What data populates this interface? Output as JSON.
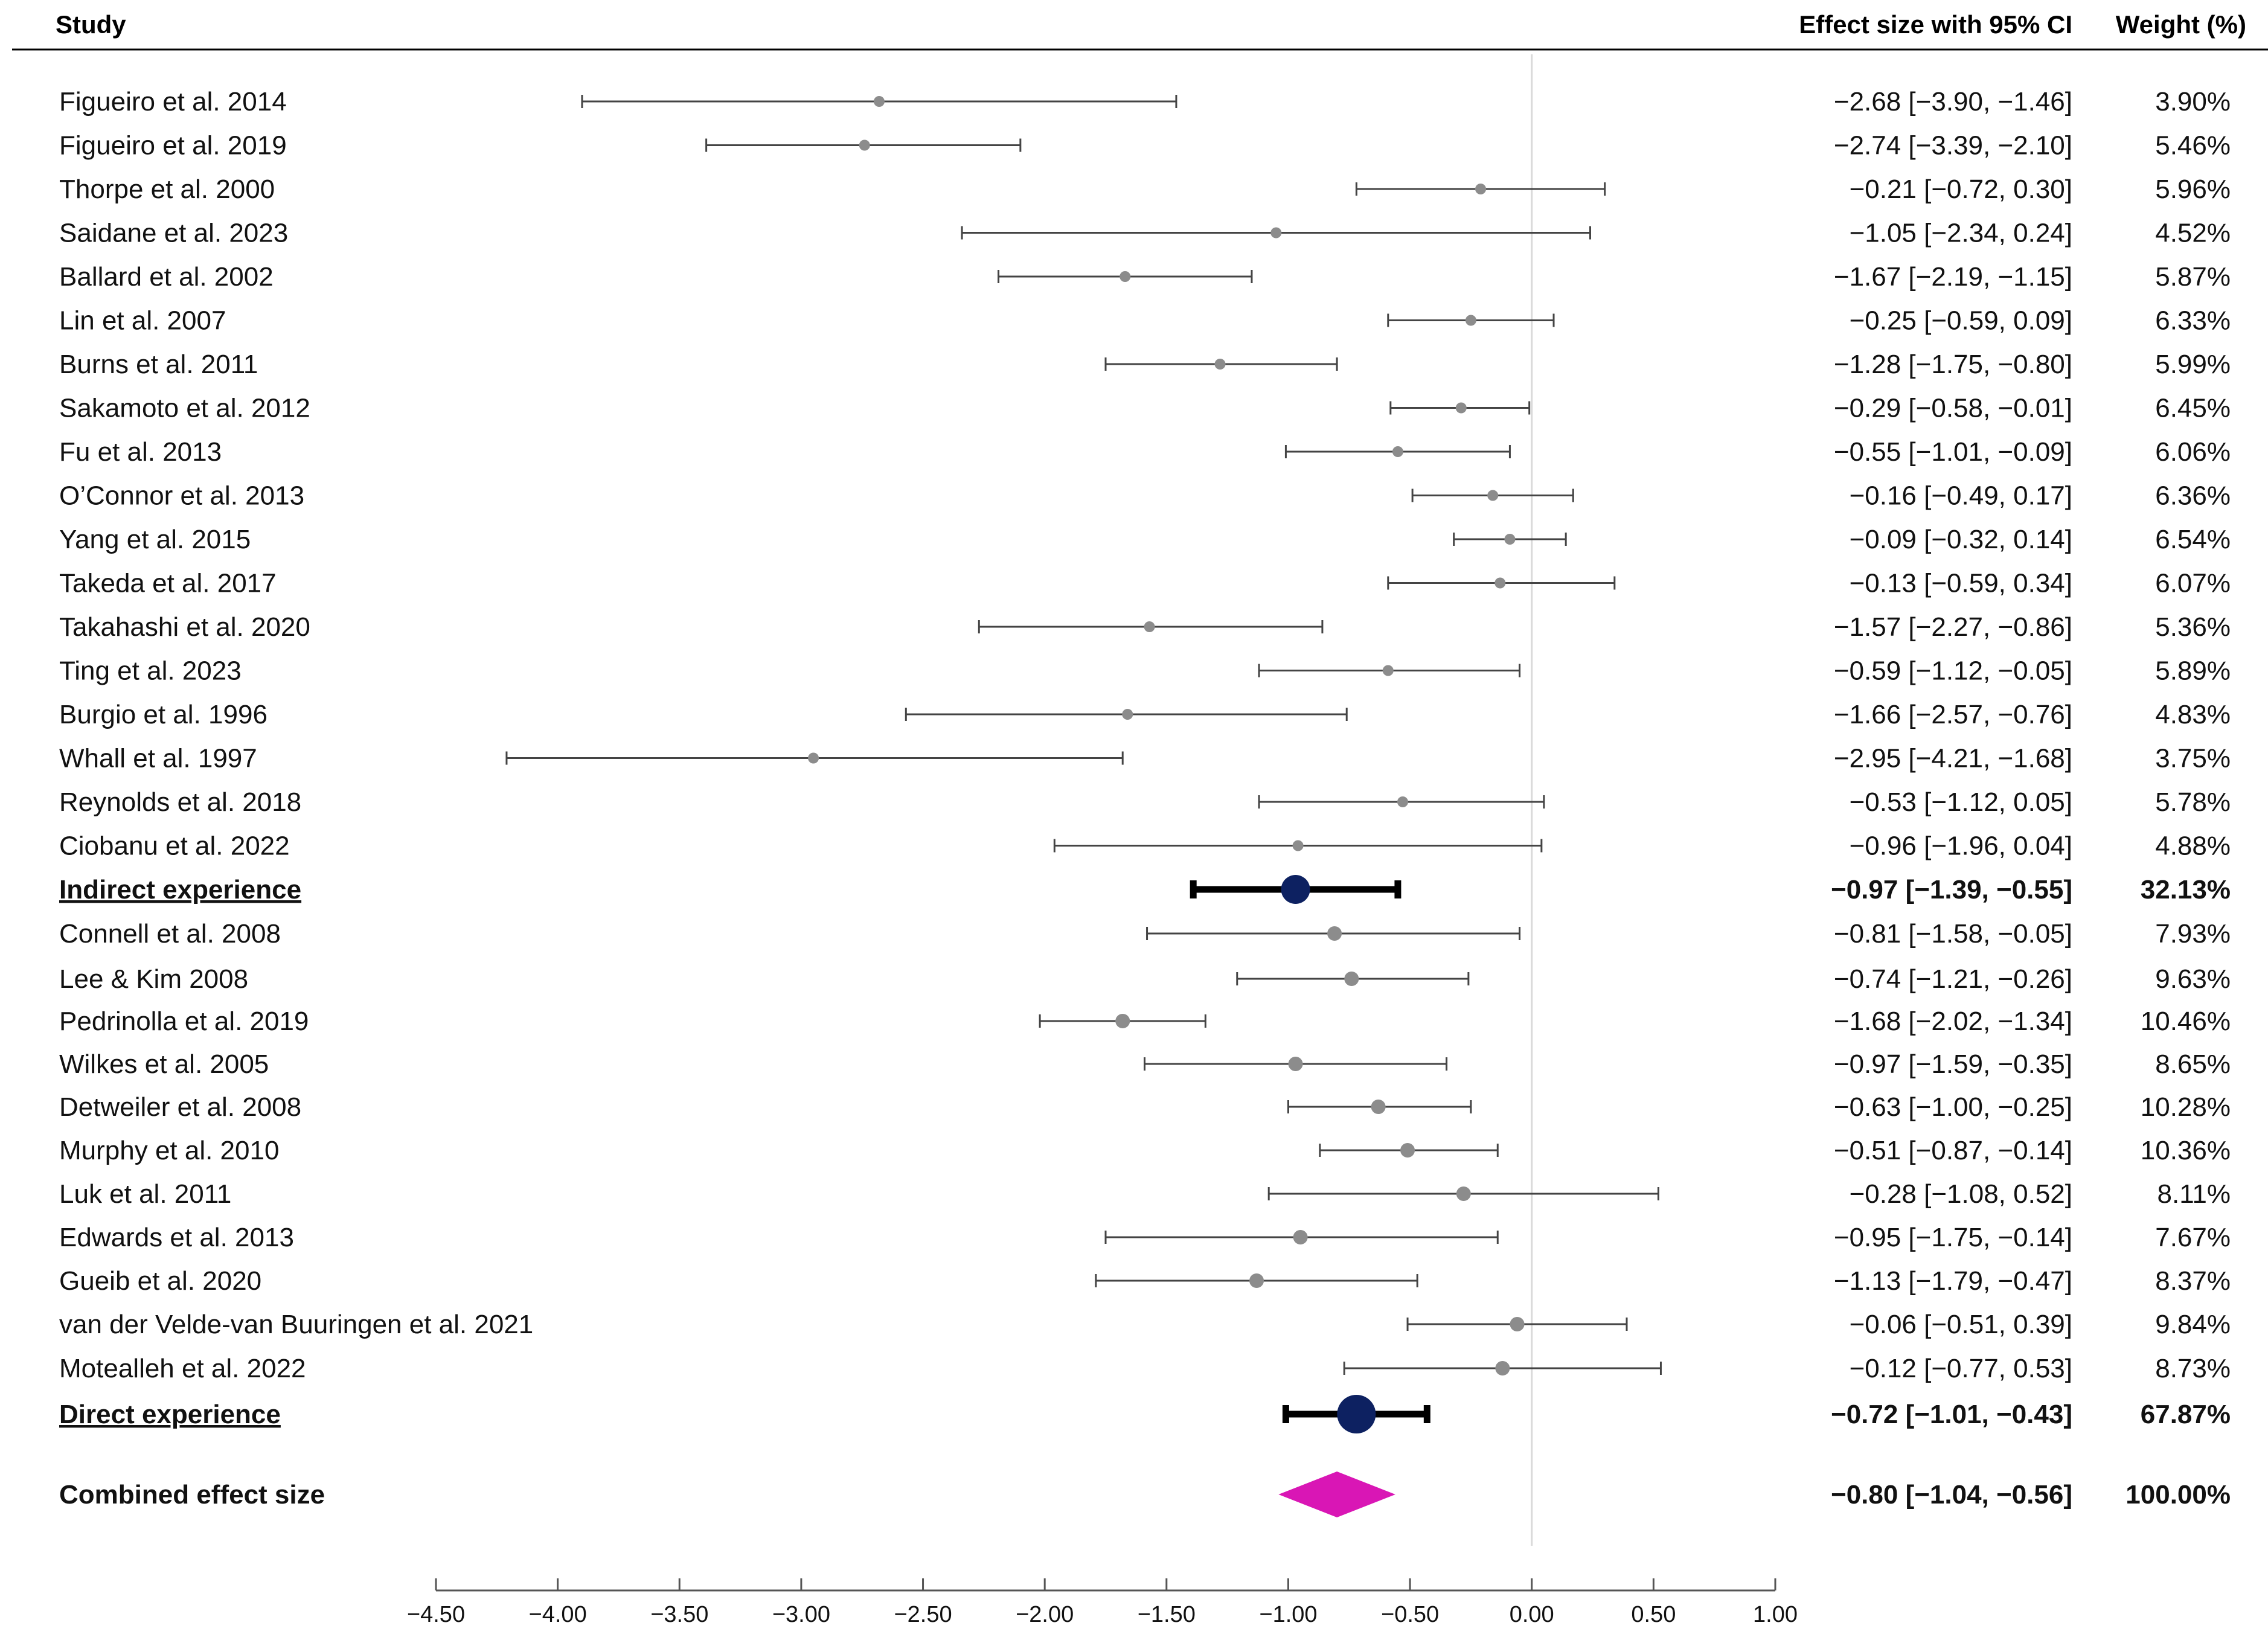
{
  "chart_data": {
    "type": "forest",
    "columns": {
      "study": "Study",
      "effect": "Effect size with 95% CI",
      "weight": "Weight (%)"
    },
    "xlim": [
      -4.5,
      1.0
    ],
    "xticks": [
      "−4.50",
      "−4.00",
      "−3.50",
      "−3.00",
      "−2.50",
      "−2.00",
      "−1.50",
      "−1.00",
      "−0.50",
      "0.00",
      "0.50",
      "1.00"
    ],
    "xtick_values": [
      -4.5,
      -4.0,
      -3.5,
      -3.0,
      -2.5,
      -2.0,
      -1.5,
      -1.0,
      -0.5,
      0.0,
      0.5,
      1.0
    ],
    "reference_line": 0,
    "rows": [
      {
        "study": "Figueiro et al. 2014",
        "es": -2.68,
        "lo": -3.9,
        "hi": -1.46,
        "ci_text": "−2.68 [−3.90, −1.46]",
        "weight": "3.90%",
        "kind": "study"
      },
      {
        "study": "Figueiro et al. 2019",
        "es": -2.74,
        "lo": -3.39,
        "hi": -2.1,
        "ci_text": "−2.74 [−3.39, −2.10]",
        "weight": "5.46%",
        "kind": "study"
      },
      {
        "study": "Thorpe et al. 2000",
        "es": -0.21,
        "lo": -0.72,
        "hi": 0.3,
        "ci_text": "−0.21 [−0.72, 0.30]",
        "weight": "5.96%",
        "kind": "study"
      },
      {
        "study": "Saidane et al. 2023",
        "es": -1.05,
        "lo": -2.34,
        "hi": 0.24,
        "ci_text": "−1.05 [−2.34, 0.24]",
        "weight": "4.52%",
        "kind": "study"
      },
      {
        "study": "Ballard et al. 2002",
        "es": -1.67,
        "lo": -2.19,
        "hi": -1.15,
        "ci_text": "−1.67 [−2.19, −1.15]",
        "weight": "5.87%",
        "kind": "study"
      },
      {
        "study": "Lin et al. 2007",
        "es": -0.25,
        "lo": -0.59,
        "hi": 0.09,
        "ci_text": "−0.25 [−0.59, 0.09]",
        "weight": "6.33%",
        "kind": "study"
      },
      {
        "study": "Burns et al. 2011",
        "es": -1.28,
        "lo": -1.75,
        "hi": -0.8,
        "ci_text": "−1.28 [−1.75, −0.80]",
        "weight": "5.99%",
        "kind": "study"
      },
      {
        "study": "Sakamoto et al. 2012",
        "es": -0.29,
        "lo": -0.58,
        "hi": -0.01,
        "ci_text": "−0.29 [−0.58, −0.01]",
        "weight": "6.45%",
        "kind": "study"
      },
      {
        "study": "Fu et al. 2013",
        "es": -0.55,
        "lo": -1.01,
        "hi": -0.09,
        "ci_text": "−0.55 [−1.01, −0.09]",
        "weight": "6.06%",
        "kind": "study"
      },
      {
        "study": "O’Connor et al. 2013",
        "es": -0.16,
        "lo": -0.49,
        "hi": 0.17,
        "ci_text": "−0.16 [−0.49, 0.17]",
        "weight": "6.36%",
        "kind": "study"
      },
      {
        "study": "Yang et al. 2015",
        "es": -0.09,
        "lo": -0.32,
        "hi": 0.14,
        "ci_text": "−0.09 [−0.32, 0.14]",
        "weight": "6.54%",
        "kind": "study"
      },
      {
        "study": "Takeda et al. 2017",
        "es": -0.13,
        "lo": -0.59,
        "hi": 0.34,
        "ci_text": "−0.13 [−0.59, 0.34]",
        "weight": "6.07%",
        "kind": "study"
      },
      {
        "study": "Takahashi et al. 2020",
        "es": -1.57,
        "lo": -2.27,
        "hi": -0.86,
        "ci_text": "−1.57 [−2.27, −0.86]",
        "weight": "5.36%",
        "kind": "study"
      },
      {
        "study": "Ting et al. 2023",
        "es": -0.59,
        "lo": -1.12,
        "hi": -0.05,
        "ci_text": "−0.59 [−1.12, −0.05]",
        "weight": "5.89%",
        "kind": "study"
      },
      {
        "study": "Burgio et al. 1996",
        "es": -1.66,
        "lo": -2.57,
        "hi": -0.76,
        "ci_text": "−1.66 [−2.57, −0.76]",
        "weight": "4.83%",
        "kind": "study"
      },
      {
        "study": "Whall et al. 1997",
        "es": -2.95,
        "lo": -4.21,
        "hi": -1.68,
        "ci_text": "−2.95 [−4.21, −1.68]",
        "weight": "3.75%",
        "kind": "study"
      },
      {
        "study": "Reynolds et al. 2018",
        "es": -0.53,
        "lo": -1.12,
        "hi": 0.05,
        "ci_text": "−0.53 [−1.12, 0.05]",
        "weight": "5.78%",
        "kind": "study"
      },
      {
        "study": "Ciobanu et al. 2022",
        "es": -0.96,
        "lo": -1.96,
        "hi": 0.04,
        "ci_text": "−0.96 [−1.96, 0.04]",
        "weight": "4.88%",
        "kind": "study"
      },
      {
        "study": "Indirect experience",
        "es": -0.97,
        "lo": -1.39,
        "hi": -0.55,
        "ci_text": "−0.97 [−1.39, −0.55]",
        "weight": "32.13%",
        "kind": "subtotal"
      },
      {
        "study": "Connell et al. 2008",
        "es": -0.81,
        "lo": -1.58,
        "hi": -0.05,
        "ci_text": "−0.81 [−1.58, −0.05]",
        "weight": "7.93%",
        "kind": "study"
      },
      {
        "study": "Lee & Kim 2008",
        "es": -0.74,
        "lo": -1.21,
        "hi": -0.26,
        "ci_text": "−0.74 [−1.21, −0.26]",
        "weight": "9.63%",
        "kind": "study"
      },
      {
        "study": "Pedrinolla et al. 2019",
        "es": -1.68,
        "lo": -2.02,
        "hi": -1.34,
        "ci_text": "−1.68 [−2.02, −1.34]",
        "weight": "10.46%",
        "kind": "study"
      },
      {
        "study": "Wilkes et al. 2005",
        "es": -0.97,
        "lo": -1.59,
        "hi": -0.35,
        "ci_text": "−0.97 [−1.59, −0.35]",
        "weight": "8.65%",
        "kind": "study"
      },
      {
        "study": "Detweiler et al. 2008",
        "es": -0.63,
        "lo": -1.0,
        "hi": -0.25,
        "ci_text": "−0.63 [−1.00, −0.25]",
        "weight": "10.28%",
        "kind": "study"
      },
      {
        "study": "Murphy et al. 2010",
        "es": -0.51,
        "lo": -0.87,
        "hi": -0.14,
        "ci_text": "−0.51 [−0.87, −0.14]",
        "weight": "10.36%",
        "kind": "study"
      },
      {
        "study": "Luk et al. 2011",
        "es": -0.28,
        "lo": -1.08,
        "hi": 0.52,
        "ci_text": "−0.28 [−1.08, 0.52]",
        "weight": "8.11%",
        "kind": "study"
      },
      {
        "study": "Edwards et al. 2013",
        "es": -0.95,
        "lo": -1.75,
        "hi": -0.14,
        "ci_text": "−0.95 [−1.75, −0.14]",
        "weight": "7.67%",
        "kind": "study"
      },
      {
        "study": "Gueib et al. 2020",
        "es": -1.13,
        "lo": -1.79,
        "hi": -0.47,
        "ci_text": "−1.13 [−1.79, −0.47]",
        "weight": "8.37%",
        "kind": "study"
      },
      {
        "study": "van der Velde-van Buuringen et al. 2021",
        "es": -0.06,
        "lo": -0.51,
        "hi": 0.39,
        "ci_text": "−0.06 [−0.51, 0.39]",
        "weight": "9.84%",
        "kind": "study"
      },
      {
        "study": "Motealleh et al.  2022",
        "es": -0.12,
        "lo": -0.77,
        "hi": 0.53,
        "ci_text": "−0.12 [−0.77, 0.53]",
        "weight": "8.73%",
        "kind": "study"
      },
      {
        "study": "Direct experience",
        "es": -0.72,
        "lo": -1.01,
        "hi": -0.43,
        "ci_text": "−0.72 [−1.01, −0.43]",
        "weight": "67.87%",
        "kind": "subtotal"
      },
      {
        "study": "Combined effect size",
        "es": -0.8,
        "lo": -1.04,
        "hi": -0.56,
        "ci_text": "−0.80 [−1.04, −0.56]",
        "weight": "100.00%",
        "kind": "overall"
      }
    ],
    "colors": {
      "study_point": "#8c8c8c",
      "subtotal_point": "#0d2161",
      "overall_diamond": "#d916b5",
      "reference_line": "#d9d9d9"
    }
  }
}
